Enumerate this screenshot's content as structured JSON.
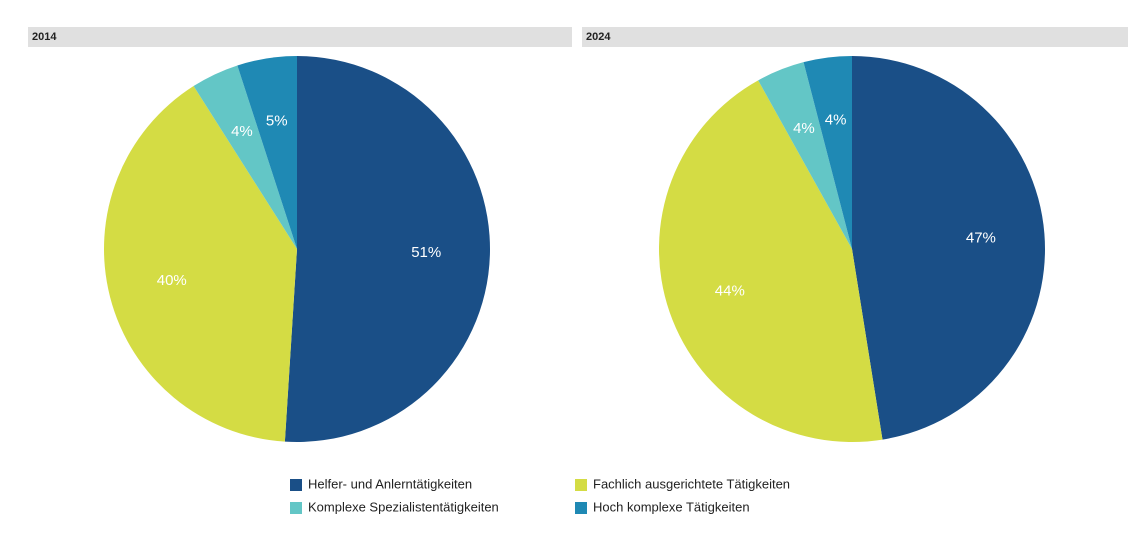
{
  "chart_data": [
    {
      "type": "pie",
      "title": "2014",
      "values": [
        51,
        40,
        4,
        5
      ],
      "value_labels": [
        "51%",
        "40%",
        "4%",
        "5%"
      ],
      "colors": [
        "#1a4f87",
        "#d4dc44",
        "#63c6c6",
        "#1f89b4"
      ]
    },
    {
      "type": "pie",
      "title": "2024",
      "values": [
        47,
        44,
        4,
        4
      ],
      "value_labels": [
        "47%",
        "44%",
        "4%",
        "4%"
      ],
      "colors": [
        "#1a4f87",
        "#d4dc44",
        "#63c6c6",
        "#1f89b4"
      ]
    }
  ],
  "legend": {
    "labels": [
      "Helfer- und Anlerntätigkeiten",
      "Fachlich ausgerichtete Tätigkeiten",
      "Komplexe Spezialistentätigkeiten",
      "Hoch komplexe Tätigkeiten"
    ]
  }
}
